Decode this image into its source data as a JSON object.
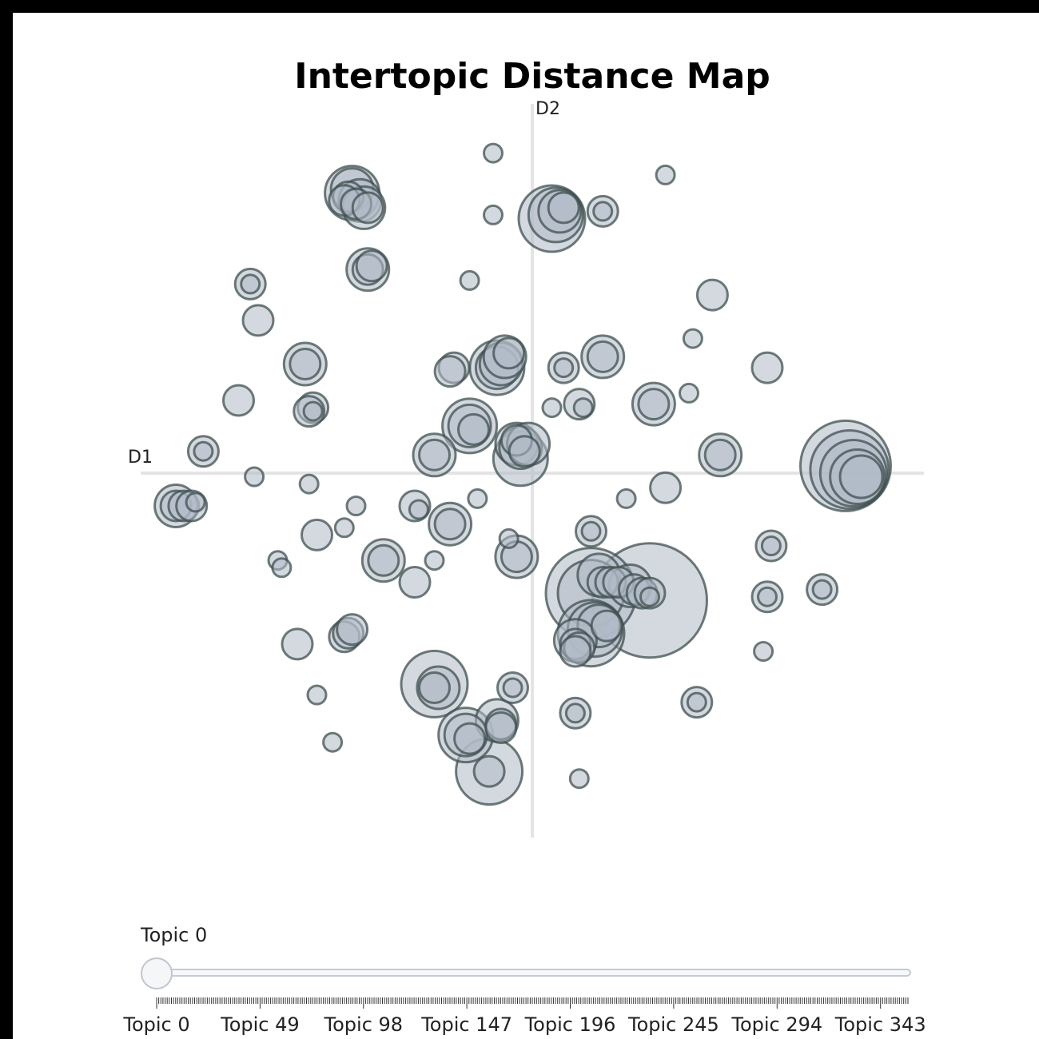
{
  "chart_data": {
    "type": "scatter",
    "title": "Intertopic Distance Map",
    "xlabel": "D1",
    "ylabel": "D2",
    "xlim": [
      -1,
      1
    ],
    "ylim": [
      -1,
      1
    ],
    "points": [
      [
        -0.46,
        0.77,
        4
      ],
      [
        -0.46,
        0.78,
        3
      ],
      [
        -0.47,
        0.76,
        2
      ],
      [
        -0.44,
        0.75,
        3
      ],
      [
        -0.48,
        0.75,
        2
      ],
      [
        -0.45,
        0.74,
        2
      ],
      [
        -0.43,
        0.73,
        3
      ],
      [
        -0.42,
        0.73,
        2
      ],
      [
        -0.42,
        0.56,
        3
      ],
      [
        -0.42,
        0.56,
        2
      ],
      [
        -0.41,
        0.57,
        2
      ],
      [
        -0.72,
        0.52,
        2
      ],
      [
        -0.72,
        0.52,
        1
      ],
      [
        -0.7,
        0.42,
        2
      ],
      [
        -0.58,
        0.3,
        3
      ],
      [
        -0.58,
        0.3,
        2
      ],
      [
        -0.75,
        0.2,
        2
      ],
      [
        -0.56,
        0.18,
        2
      ],
      [
        -0.57,
        0.17,
        2
      ],
      [
        -0.56,
        0.17,
        1
      ],
      [
        -0.84,
        0.06,
        2
      ],
      [
        -0.84,
        0.06,
        1
      ],
      [
        -0.71,
        -0.01,
        1
      ],
      [
        -0.91,
        -0.09,
        3
      ],
      [
        -0.91,
        -0.09,
        2
      ],
      [
        -0.89,
        -0.09,
        2
      ],
      [
        -0.87,
        -0.09,
        2
      ],
      [
        -0.86,
        -0.08,
        1
      ],
      [
        -0.57,
        -0.03,
        1
      ],
      [
        -0.45,
        -0.09,
        1
      ],
      [
        -0.48,
        -0.15,
        1
      ],
      [
        -0.55,
        -0.17,
        2
      ],
      [
        -0.65,
        -0.24,
        1
      ],
      [
        -0.64,
        -0.26,
        1
      ],
      [
        -0.38,
        -0.24,
        3
      ],
      [
        -0.38,
        -0.24,
        2
      ],
      [
        -0.3,
        -0.3,
        2
      ],
      [
        -0.3,
        -0.09,
        2
      ],
      [
        -0.29,
        -0.1,
        1
      ],
      [
        -0.25,
        -0.24,
        1
      ],
      [
        -0.21,
        -0.14,
        3
      ],
      [
        -0.21,
        -0.14,
        2
      ],
      [
        -0.14,
        -0.07,
        1
      ],
      [
        -0.6,
        -0.47,
        2
      ],
      [
        -0.48,
        -0.45,
        2
      ],
      [
        -0.47,
        -0.44,
        2
      ],
      [
        -0.46,
        -0.43,
        2
      ],
      [
        -0.55,
        -0.61,
        1
      ],
      [
        -0.51,
        -0.74,
        1
      ],
      [
        -0.25,
        0.05,
        3
      ],
      [
        -0.25,
        0.05,
        2
      ],
      [
        -0.16,
        0.13,
        4
      ],
      [
        -0.16,
        0.13,
        3
      ],
      [
        -0.15,
        0.12,
        2
      ],
      [
        -0.2,
        0.29,
        2
      ],
      [
        -0.21,
        0.28,
        2
      ],
      [
        -0.09,
        0.29,
        4
      ],
      [
        -0.09,
        0.29,
        3
      ],
      [
        -0.08,
        0.3,
        3
      ],
      [
        -0.07,
        0.32,
        3
      ],
      [
        -0.06,
        0.33,
        2
      ],
      [
        -0.03,
        0.04,
        4
      ],
      [
        -0.04,
        0.08,
        3
      ],
      [
        -0.03,
        0.07,
        3
      ],
      [
        -0.01,
        0.08,
        3
      ],
      [
        -0.04,
        0.09,
        2
      ],
      [
        -0.02,
        0.06,
        2
      ],
      [
        -0.1,
        0.71,
        1
      ],
      [
        -0.1,
        0.88,
        1
      ],
      [
        -0.16,
        0.53,
        1
      ],
      [
        0.05,
        0.7,
        5
      ],
      [
        0.06,
        0.71,
        4
      ],
      [
        0.07,
        0.72,
        3
      ],
      [
        0.08,
        0.73,
        2
      ],
      [
        0.18,
        0.72,
        2
      ],
      [
        0.18,
        0.72,
        1
      ],
      [
        0.34,
        0.82,
        1
      ],
      [
        0.46,
        0.49,
        2
      ],
      [
        0.41,
        0.37,
        1
      ],
      [
        0.18,
        0.32,
        3
      ],
      [
        0.18,
        0.32,
        2
      ],
      [
        0.08,
        0.29,
        2
      ],
      [
        0.08,
        0.29,
        1
      ],
      [
        0.12,
        0.19,
        2
      ],
      [
        0.13,
        0.18,
        1
      ],
      [
        0.05,
        0.18,
        1
      ],
      [
        0.31,
        0.19,
        3
      ],
      [
        0.31,
        0.19,
        2
      ],
      [
        0.4,
        0.22,
        1
      ],
      [
        0.6,
        0.29,
        2
      ],
      [
        0.48,
        0.05,
        3
      ],
      [
        0.48,
        0.05,
        2
      ],
      [
        0.8,
        0.02,
        7
      ],
      [
        0.81,
        0.01,
        6
      ],
      [
        0.82,
        0.0,
        5
      ],
      [
        0.83,
        -0.01,
        4
      ],
      [
        0.84,
        -0.01,
        3
      ],
      [
        0.34,
        -0.04,
        2
      ],
      [
        0.24,
        -0.07,
        1
      ],
      [
        0.15,
        -0.16,
        2
      ],
      [
        0.15,
        -0.16,
        1
      ],
      [
        -0.06,
        -0.18,
        1
      ],
      [
        -0.04,
        -0.23,
        3
      ],
      [
        -0.04,
        -0.23,
        2
      ],
      [
        0.3,
        -0.35,
        9
      ],
      [
        0.15,
        -0.33,
        7
      ],
      [
        0.15,
        -0.33,
        5
      ],
      [
        0.17,
        -0.28,
        3
      ],
      [
        0.18,
        -0.3,
        2
      ],
      [
        0.2,
        -0.3,
        2
      ],
      [
        0.22,
        -0.3,
        2
      ],
      [
        0.25,
        -0.31,
        3
      ],
      [
        0.26,
        -0.32,
        2
      ],
      [
        0.28,
        -0.33,
        2
      ],
      [
        0.3,
        -0.33,
        2
      ],
      [
        0.3,
        -0.34,
        1
      ],
      [
        0.15,
        -0.44,
        5
      ],
      [
        0.16,
        -0.43,
        4
      ],
      [
        0.17,
        -0.42,
        3
      ],
      [
        0.19,
        -0.42,
        2
      ],
      [
        0.11,
        -0.46,
        3
      ],
      [
        0.11,
        -0.47,
        2
      ],
      [
        0.12,
        -0.48,
        2
      ],
      [
        0.11,
        -0.49,
        2
      ],
      [
        0.6,
        -0.34,
        2
      ],
      [
        0.6,
        -0.34,
        1
      ],
      [
        0.59,
        -0.49,
        1
      ],
      [
        0.61,
        -0.2,
        2
      ],
      [
        0.61,
        -0.2,
        1
      ],
      [
        0.74,
        -0.32,
        2
      ],
      [
        0.74,
        -0.32,
        1
      ],
      [
        0.42,
        -0.63,
        2
      ],
      [
        0.42,
        -0.63,
        1
      ],
      [
        0.11,
        -0.66,
        2
      ],
      [
        0.11,
        -0.66,
        1
      ],
      [
        -0.25,
        -0.58,
        5
      ],
      [
        -0.24,
        -0.59,
        3
      ],
      [
        -0.25,
        -0.59,
        2
      ],
      [
        -0.05,
        -0.59,
        2
      ],
      [
        -0.05,
        -0.59,
        1
      ],
      [
        -0.09,
        -0.68,
        3
      ],
      [
        -0.08,
        -0.69,
        2
      ],
      [
        -0.08,
        -0.7,
        2
      ],
      [
        -0.17,
        -0.72,
        4
      ],
      [
        -0.17,
        -0.72,
        3
      ],
      [
        -0.16,
        -0.73,
        2
      ],
      [
        -0.11,
        -0.82,
        5
      ],
      [
        -0.11,
        -0.82,
        2
      ],
      [
        0.12,
        -0.84,
        1
      ]
    ]
  },
  "slider": {
    "current_label": "Topic 0",
    "value": 0,
    "min": 0,
    "max": 356,
    "tick_labels": [
      "Topic 0",
      "Topic 49",
      "Topic 98",
      "Topic 147",
      "Topic 196",
      "Topic 245",
      "Topic 294",
      "Topic 343"
    ],
    "tick_values": [
      0,
      49,
      98,
      147,
      196,
      245,
      294,
      343
    ]
  },
  "colors": {
    "bubble_fill": "#b0bac6",
    "bubble_stroke": "#3f4f4f",
    "axis_line": "#e4e4e4"
  }
}
